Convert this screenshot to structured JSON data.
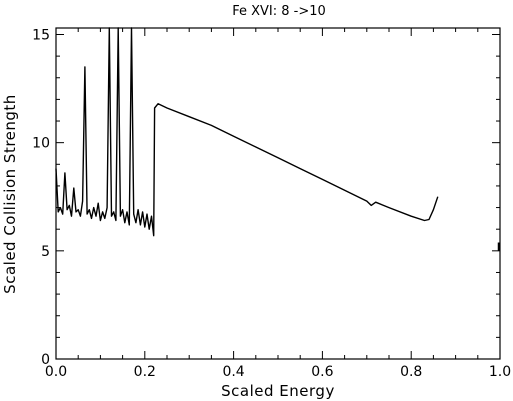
{
  "chart_data": {
    "type": "line",
    "title": "Fe XVI: 8 ->10",
    "xlabel": "Scaled Energy",
    "ylabel": "Scaled Collision Strength",
    "xlim": [
      0.0,
      1.0
    ],
    "ylim": [
      0,
      15.3
    ],
    "x_ticks": [
      0.0,
      0.2,
      0.4,
      0.6,
      0.8,
      1.0
    ],
    "x_tick_labels": [
      "0.0",
      "0.2",
      "0.4",
      "0.6",
      "0.8",
      "1.0"
    ],
    "y_ticks": [
      0,
      5,
      10,
      15
    ],
    "y_tick_labels": [
      "0",
      "5",
      "10",
      "15"
    ],
    "grid": false,
    "legend": "none",
    "colors": {
      "line": "#000000",
      "axes": "#000000",
      "background": "#ffffff"
    },
    "series": [
      {
        "values_xy": [
          [
            0.0,
            8.8
          ],
          [
            0.005,
            6.8
          ],
          [
            0.01,
            7.0
          ],
          [
            0.015,
            6.7
          ],
          [
            0.02,
            8.6
          ],
          [
            0.025,
            6.9
          ],
          [
            0.03,
            7.1
          ],
          [
            0.035,
            6.6
          ],
          [
            0.04,
            7.9
          ],
          [
            0.045,
            6.8
          ],
          [
            0.05,
            6.9
          ],
          [
            0.055,
            6.6
          ],
          [
            0.06,
            7.3
          ],
          [
            0.065,
            13.5
          ],
          [
            0.07,
            6.7
          ],
          [
            0.075,
            6.9
          ],
          [
            0.08,
            6.5
          ],
          [
            0.085,
            7.0
          ],
          [
            0.09,
            6.6
          ],
          [
            0.095,
            7.2
          ],
          [
            0.1,
            6.4
          ],
          [
            0.105,
            6.8
          ],
          [
            0.11,
            6.5
          ],
          [
            0.115,
            7.0
          ],
          [
            0.12,
            15.3
          ],
          [
            0.125,
            6.6
          ],
          [
            0.13,
            6.8
          ],
          [
            0.135,
            6.4
          ],
          [
            0.14,
            15.3
          ],
          [
            0.145,
            6.6
          ],
          [
            0.15,
            6.9
          ],
          [
            0.155,
            6.3
          ],
          [
            0.16,
            6.8
          ],
          [
            0.165,
            6.2
          ],
          [
            0.17,
            15.3
          ],
          [
            0.175,
            6.7
          ],
          [
            0.18,
            6.3
          ],
          [
            0.185,
            6.9
          ],
          [
            0.19,
            6.2
          ],
          [
            0.195,
            6.8
          ],
          [
            0.2,
            6.1
          ],
          [
            0.205,
            6.7
          ],
          [
            0.21,
            6.0
          ],
          [
            0.215,
            6.6
          ],
          [
            0.22,
            5.7
          ],
          [
            0.222,
            11.6
          ],
          [
            0.23,
            11.8
          ],
          [
            0.25,
            11.6
          ],
          [
            0.3,
            11.2
          ],
          [
            0.35,
            10.8
          ],
          [
            0.4,
            10.3
          ],
          [
            0.45,
            9.8
          ],
          [
            0.5,
            9.3
          ],
          [
            0.55,
            8.8
          ],
          [
            0.6,
            8.3
          ],
          [
            0.65,
            7.8
          ],
          [
            0.7,
            7.3
          ],
          [
            0.71,
            7.1
          ],
          [
            0.72,
            7.25
          ],
          [
            0.75,
            7.0
          ],
          [
            0.8,
            6.6
          ],
          [
            0.83,
            6.4
          ],
          [
            0.84,
            6.45
          ],
          [
            0.85,
            6.9
          ],
          [
            0.86,
            7.5
          ]
        ],
        "extra_points": [
          [
            1.0,
            5.2
          ]
        ]
      }
    ]
  }
}
